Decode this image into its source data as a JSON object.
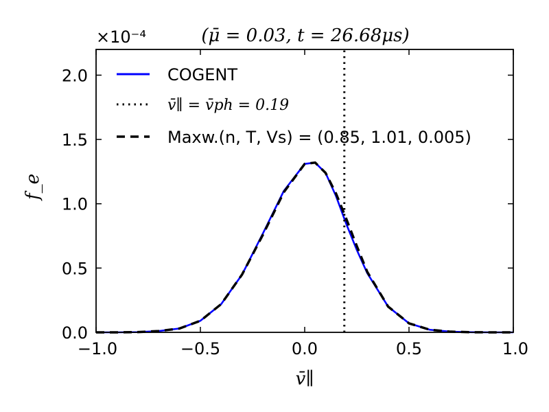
{
  "chart_data": {
    "type": "line",
    "title": "(μ̄ = 0.03, t = 26.68μs)",
    "xlabel": "v̄∥",
    "ylabel": "f_e",
    "y_scale_label": "×10⁻⁴",
    "y_scale_factor": 0.0001,
    "xlim": [
      -1.0,
      1.0
    ],
    "ylim": [
      0.0,
      2.2
    ],
    "x_ticks": [
      -1.0,
      -0.5,
      0.0,
      0.5,
      1.0
    ],
    "x_tick_labels": [
      "−1.0",
      "−0.5",
      "0.0",
      "0.5",
      "1.0"
    ],
    "y_ticks": [
      0.0,
      0.5,
      1.0,
      1.5,
      2.0
    ],
    "y_tick_labels": [
      "0.0",
      "0.5",
      "1.0",
      "1.5",
      "2.0"
    ],
    "grid": false,
    "legend_position": "top-left",
    "series": [
      {
        "name": "COGENT",
        "style": "solid",
        "color": "#0000ff",
        "x": [
          -1.0,
          -0.9,
          -0.8,
          -0.7,
          -0.6,
          -0.5,
          -0.4,
          -0.3,
          -0.2,
          -0.1,
          0.0,
          0.05,
          0.1,
          0.15,
          0.2,
          0.25,
          0.3,
          0.4,
          0.5,
          0.6,
          0.7,
          0.8,
          0.9,
          1.0
        ],
        "values": [
          0.0,
          0.0,
          0.002,
          0.01,
          0.03,
          0.09,
          0.22,
          0.45,
          0.77,
          1.1,
          1.31,
          1.32,
          1.24,
          1.06,
          0.84,
          0.64,
          0.46,
          0.2,
          0.07,
          0.02,
          0.005,
          0.001,
          0.0,
          0.0
        ]
      },
      {
        "name": "v̄∥ = v̄ph = 0.19",
        "style": "dotted",
        "color": "#000000",
        "x": [
          0.19,
          0.19
        ],
        "values": [
          0.0,
          2.2
        ]
      },
      {
        "name": "Maxw.(n, T, Vs) = (0.85, 1.01, 0.005)",
        "style": "dashed",
        "color": "#000000",
        "x": [
          -1.0,
          -0.9,
          -0.8,
          -0.7,
          -0.6,
          -0.5,
          -0.4,
          -0.3,
          -0.2,
          -0.1,
          0.0,
          0.05,
          0.1,
          0.15,
          0.2,
          0.25,
          0.3,
          0.4,
          0.5,
          0.6,
          0.7,
          0.8,
          0.9,
          1.0
        ],
        "values": [
          0.0,
          0.0,
          0.002,
          0.01,
          0.03,
          0.09,
          0.22,
          0.45,
          0.76,
          1.09,
          1.31,
          1.32,
          1.24,
          1.08,
          0.88,
          0.67,
          0.47,
          0.2,
          0.07,
          0.02,
          0.005,
          0.001,
          0.0,
          0.0
        ]
      }
    ]
  }
}
